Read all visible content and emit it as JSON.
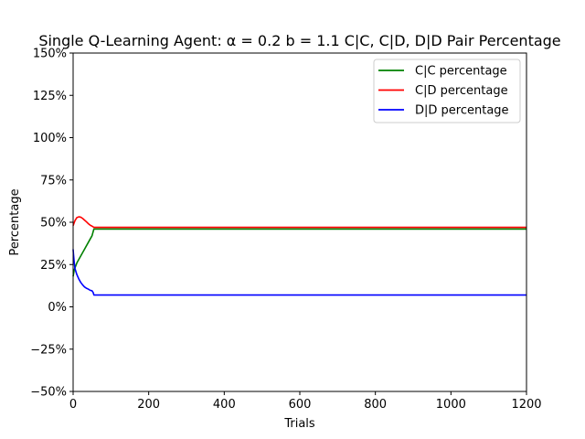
{
  "chart_data": {
    "type": "line",
    "title": "Single Q-Learning Agent: α = 0.2 b = 1.1  C|C, C|D, D|D Pair Percentage",
    "xlabel": "Trials",
    "ylabel": "Percentage",
    "xlim": [
      0,
      1200
    ],
    "ylim": [
      -50,
      150
    ],
    "xticks": [
      0,
      200,
      400,
      600,
      800,
      1000,
      1200
    ],
    "xtick_labels": [
      "0",
      "200",
      "400",
      "600",
      "800",
      "1000",
      "1200"
    ],
    "yticks": [
      -50,
      -25,
      0,
      25,
      50,
      75,
      100,
      125,
      150
    ],
    "ytick_labels": [
      "−50%",
      "−25%",
      "0%",
      "25%",
      "50%",
      "75%",
      "100%",
      "125%",
      "150%"
    ],
    "grid": false,
    "legend_position": "top-right",
    "series": [
      {
        "name": "C|C percentage",
        "color": "#008000",
        "x": [
          0,
          3,
          10,
          20,
          30,
          40,
          50,
          55,
          100,
          200,
          400,
          600,
          800,
          1000,
          1200
        ],
        "y": [
          18,
          22,
          26,
          30,
          34,
          38,
          42,
          46,
          46,
          46,
          46,
          46,
          46,
          46,
          46
        ]
      },
      {
        "name": "C|D percentage",
        "color": "#ff0000",
        "x": [
          0,
          5,
          10,
          15,
          20,
          25,
          30,
          35,
          40,
          45,
          50,
          55,
          100,
          200,
          400,
          600,
          800,
          1000,
          1200
        ],
        "y": [
          48,
          51,
          52.8,
          53.2,
          53,
          52.3,
          51.3,
          50.3,
          49.2,
          48.3,
          47.7,
          47,
          47,
          47,
          47,
          47,
          47,
          47,
          47
        ]
      },
      {
        "name": "D|D percentage",
        "color": "#0000ff",
        "x": [
          0,
          1,
          3,
          5,
          10,
          15,
          20,
          25,
          30,
          35,
          40,
          45,
          50,
          53,
          55,
          100,
          200,
          400,
          600,
          800,
          1000,
          1200
        ],
        "y": [
          34,
          31,
          26,
          22.5,
          19,
          16.5,
          14.5,
          13,
          11.8,
          11,
          10.5,
          9.8,
          9.5,
          8.5,
          7,
          7,
          7,
          7,
          7,
          7,
          7,
          7
        ]
      }
    ]
  }
}
